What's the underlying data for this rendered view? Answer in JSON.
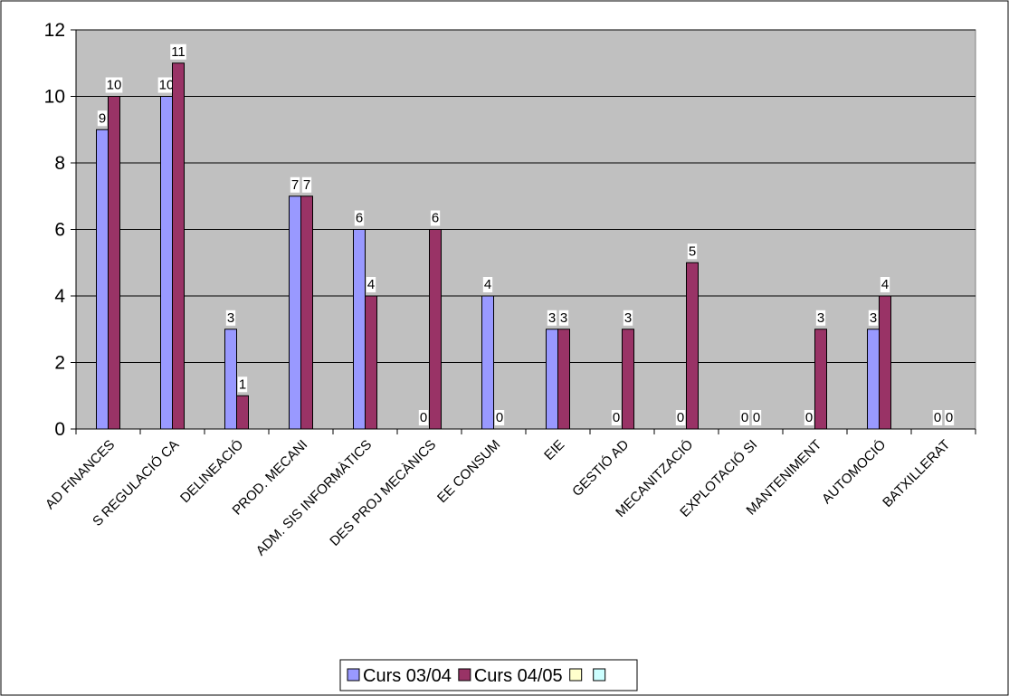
{
  "chart_data": {
    "type": "bar",
    "title": "",
    "xlabel": "",
    "ylabel": "",
    "ylim": [
      0,
      12
    ],
    "yticks": [
      0,
      2,
      4,
      6,
      8,
      10,
      12
    ],
    "grid": true,
    "legend_placement": "bottom-center",
    "categories": [
      "AD FINANCES",
      "S REGULACIÓ CA",
      "DELINEACIÓ",
      "PROD. MECANI",
      "ADM. SIS INFORMÀTICS",
      "DES PROJ MECÀNICS",
      "EE CONSUM",
      "EIE",
      "GESTIÓ AD",
      "MECANITZACIÓ",
      "EXPLOTACIÓ SI",
      "MANTENIMENT",
      "AUTOMOCIÓ",
      "BATXILLERAT"
    ],
    "series": [
      {
        "name": "Curs 03/04",
        "color": "#9999ff",
        "values": [
          9,
          10,
          3,
          7,
          6,
          0,
          4,
          3,
          0,
          0,
          0,
          0,
          3,
          0
        ]
      },
      {
        "name": "Curs 04/05",
        "color": "#993366",
        "values": [
          10,
          11,
          1,
          7,
          4,
          6,
          0,
          3,
          3,
          5,
          0,
          3,
          4,
          0
        ]
      }
    ],
    "legend_extra_swatches": [
      "#ffffcc",
      "#ccffff"
    ],
    "plot_background": "#c0c0c0"
  }
}
